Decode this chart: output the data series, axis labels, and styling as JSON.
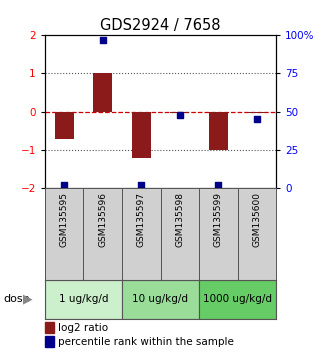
{
  "title": "GDS2924 / 7658",
  "samples": [
    "GSM135595",
    "GSM135596",
    "GSM135597",
    "GSM135598",
    "GSM135599",
    "GSM135600"
  ],
  "log2_ratio": [
    -0.72,
    1.02,
    -1.22,
    -0.04,
    -1.0,
    -0.05
  ],
  "percentile_rank": [
    2,
    97,
    2,
    48,
    2,
    45
  ],
  "bar_color": "#8b1a1a",
  "dot_color": "#00008b",
  "left_ylim": [
    -2,
    2
  ],
  "right_ylim": [
    0,
    100
  ],
  "left_yticks": [
    -2,
    -1,
    0,
    1,
    2
  ],
  "right_yticks": [
    0,
    25,
    50,
    75,
    100
  ],
  "right_yticklabels": [
    "0",
    "25",
    "50",
    "75",
    "100%"
  ],
  "dose_groups": [
    {
      "label": "1 ug/kg/d",
      "start": 0,
      "end": 2,
      "color": "#ccf0cc"
    },
    {
      "label": "10 ug/kg/d",
      "start": 2,
      "end": 4,
      "color": "#99dd99"
    },
    {
      "label": "1000 ug/kg/d",
      "start": 4,
      "end": 6,
      "color": "#66cc66"
    }
  ],
  "legend_items": [
    {
      "color": "#8b1a1a",
      "label": "log2 ratio"
    },
    {
      "color": "#00008b",
      "label": "percentile rank within the sample"
    }
  ],
  "hline_0_color": "#cc0000",
  "hline_dotted_color": "#555555",
  "bar_width": 0.5,
  "dot_size": 20,
  "figsize": [
    3.21,
    3.54
  ],
  "dpi": 100
}
